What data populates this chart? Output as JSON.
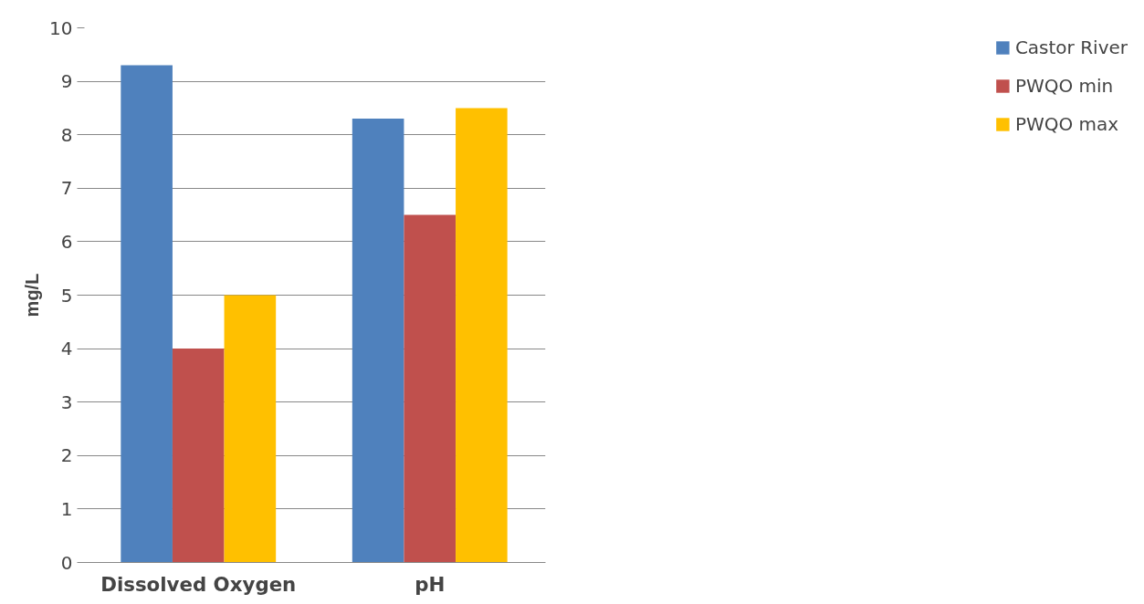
{
  "chart_data": {
    "type": "bar",
    "ylabel": "mg/L",
    "categories": [
      "Dissolved Oxygen",
      "pH"
    ],
    "series": [
      {
        "name": "Castor River",
        "color": "#4f81bd",
        "values": [
          9.3,
          8.3
        ]
      },
      {
        "name": "PWQO min",
        "color": "#c0504d",
        "values": [
          4.0,
          6.5
        ]
      },
      {
        "name": "PWQO max",
        "color": "#ffc000",
        "values": [
          5.0,
          8.5
        ]
      }
    ],
    "ylim": [
      0,
      10
    ],
    "yticks": [
      0,
      1,
      2,
      3,
      4,
      5,
      6,
      7,
      8,
      9,
      10
    ],
    "grid": "y",
    "legend": "right"
  }
}
